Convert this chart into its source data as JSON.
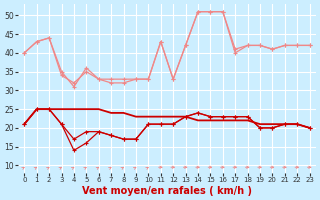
{
  "x": [
    0,
    1,
    2,
    3,
    4,
    5,
    6,
    7,
    8,
    9,
    10,
    11,
    12,
    13,
    14,
    15,
    16,
    17,
    18,
    19,
    20,
    21,
    22,
    23
  ],
  "line_pink1": [
    40,
    43,
    44,
    35,
    31,
    36,
    33,
    32,
    32,
    33,
    33,
    43,
    33,
    42,
    51,
    51,
    51,
    40,
    42,
    42,
    41,
    42,
    42,
    42
  ],
  "line_pink2": [
    40,
    43,
    44,
    34,
    32,
    35,
    33,
    33,
    33,
    33,
    33,
    43,
    33,
    42,
    51,
    51,
    51,
    41,
    42,
    42,
    41,
    42,
    42,
    42
  ],
  "line_darkred1": [
    21,
    25,
    25,
    25,
    25,
    25,
    25,
    24,
    24,
    23,
    23,
    23,
    23,
    23,
    22,
    22,
    22,
    22,
    22,
    21,
    21,
    21,
    21,
    20
  ],
  "line_darkred2": [
    21,
    25,
    25,
    21,
    17,
    19,
    19,
    18,
    17,
    17,
    21,
    21,
    21,
    23,
    24,
    23,
    23,
    23,
    23,
    20,
    20,
    21,
    21,
    20
  ],
  "line_darkred3": [
    21,
    25,
    25,
    21,
    14,
    16,
    19,
    18,
    17,
    17,
    21,
    21,
    21,
    23,
    24,
    23,
    23,
    23,
    23,
    20,
    20,
    21,
    21,
    20
  ],
  "arrows_diagonal": [
    0,
    1,
    2,
    3,
    4,
    5,
    6,
    7,
    8,
    9,
    10
  ],
  "arrows_horizontal": [
    11,
    12,
    13,
    14,
    15,
    16,
    17,
    18,
    19,
    20,
    21,
    22,
    23
  ],
  "xlabel": "Vent moyen/en rafales ( km/h )",
  "bg_color": "#cceeff",
  "grid_color": "#ffffff",
  "color_light": "#f08888",
  "color_dark": "#cc0000",
  "ylim_min": 8,
  "ylim_max": 53,
  "yticks": [
    10,
    15,
    20,
    25,
    30,
    35,
    40,
    45,
    50
  ]
}
